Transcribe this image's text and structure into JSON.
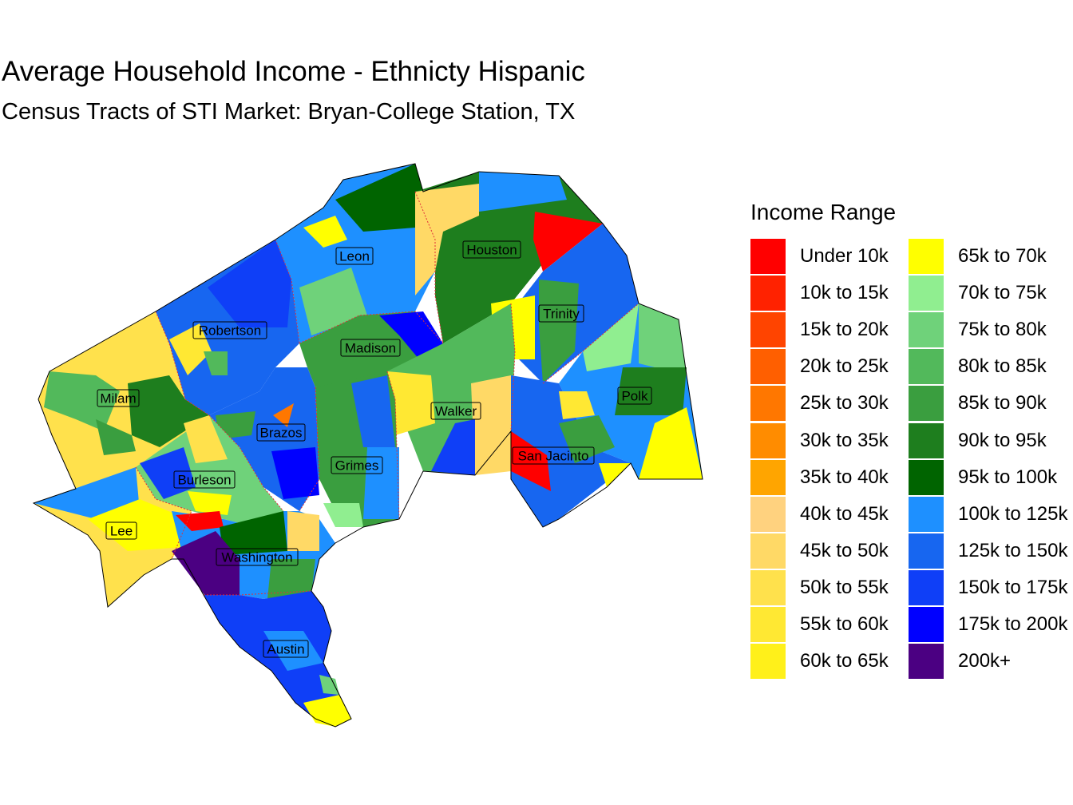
{
  "title": "Average Household Income - Ethnicty Hispanic",
  "subtitle": "Census Tracts of STI Market: Bryan-College Station, TX",
  "legend": {
    "title": "Income Range",
    "items": [
      {
        "label": "Under 10k",
        "color": "#ff0000"
      },
      {
        "label": "10k to 15k",
        "color": "#ff2200"
      },
      {
        "label": "15k to 20k",
        "color": "#ff4400"
      },
      {
        "label": "20k to 25k",
        "color": "#ff5f00"
      },
      {
        "label": "25k to 30k",
        "color": "#ff7700"
      },
      {
        "label": "30k to 35k",
        "color": "#ff8c00"
      },
      {
        "label": "35k to 40k",
        "color": "#ffa500"
      },
      {
        "label": "40k to 45k",
        "color": "#ffd27f"
      },
      {
        "label": "45k to 50k",
        "color": "#ffd966"
      },
      {
        "label": "50k to 55k",
        "color": "#ffe14c"
      },
      {
        "label": "55k to 60k",
        "color": "#ffe833"
      },
      {
        "label": "60k to 65k",
        "color": "#fff01a"
      },
      {
        "label": "65k to 70k",
        "color": "#ffff00"
      },
      {
        "label": "70k to 75k",
        "color": "#90ee90"
      },
      {
        "label": "75k to 80k",
        "color": "#6fd27a"
      },
      {
        "label": "80k to 85k",
        "color": "#52b95b"
      },
      {
        "label": "85k to 90k",
        "color": "#3a9e3f"
      },
      {
        "label": "90k to 95k",
        "color": "#1e7e1e"
      },
      {
        "label": "95k to 100k",
        "color": "#006400"
      },
      {
        "label": "100k to 125k",
        "color": "#1e90ff"
      },
      {
        "label": "125k to 150k",
        "color": "#1766f0"
      },
      {
        "label": "150k to 175k",
        "color": "#0f3ff7"
      },
      {
        "label": "175k to 200k",
        "color": "#0000ff"
      },
      {
        "label": "200k+",
        "color": "#4b0082"
      }
    ]
  },
  "counties": [
    {
      "name": "Leon"
    },
    {
      "name": "Houston"
    },
    {
      "name": "Trinity"
    },
    {
      "name": "Robertson"
    },
    {
      "name": "Madison"
    },
    {
      "name": "Milam"
    },
    {
      "name": "Polk"
    },
    {
      "name": "Walker"
    },
    {
      "name": "Brazos"
    },
    {
      "name": "San Jacinto"
    },
    {
      "name": "Grimes"
    },
    {
      "name": "Burleson"
    },
    {
      "name": "Lee"
    },
    {
      "name": "Washington"
    },
    {
      "name": "Austin"
    }
  ]
}
